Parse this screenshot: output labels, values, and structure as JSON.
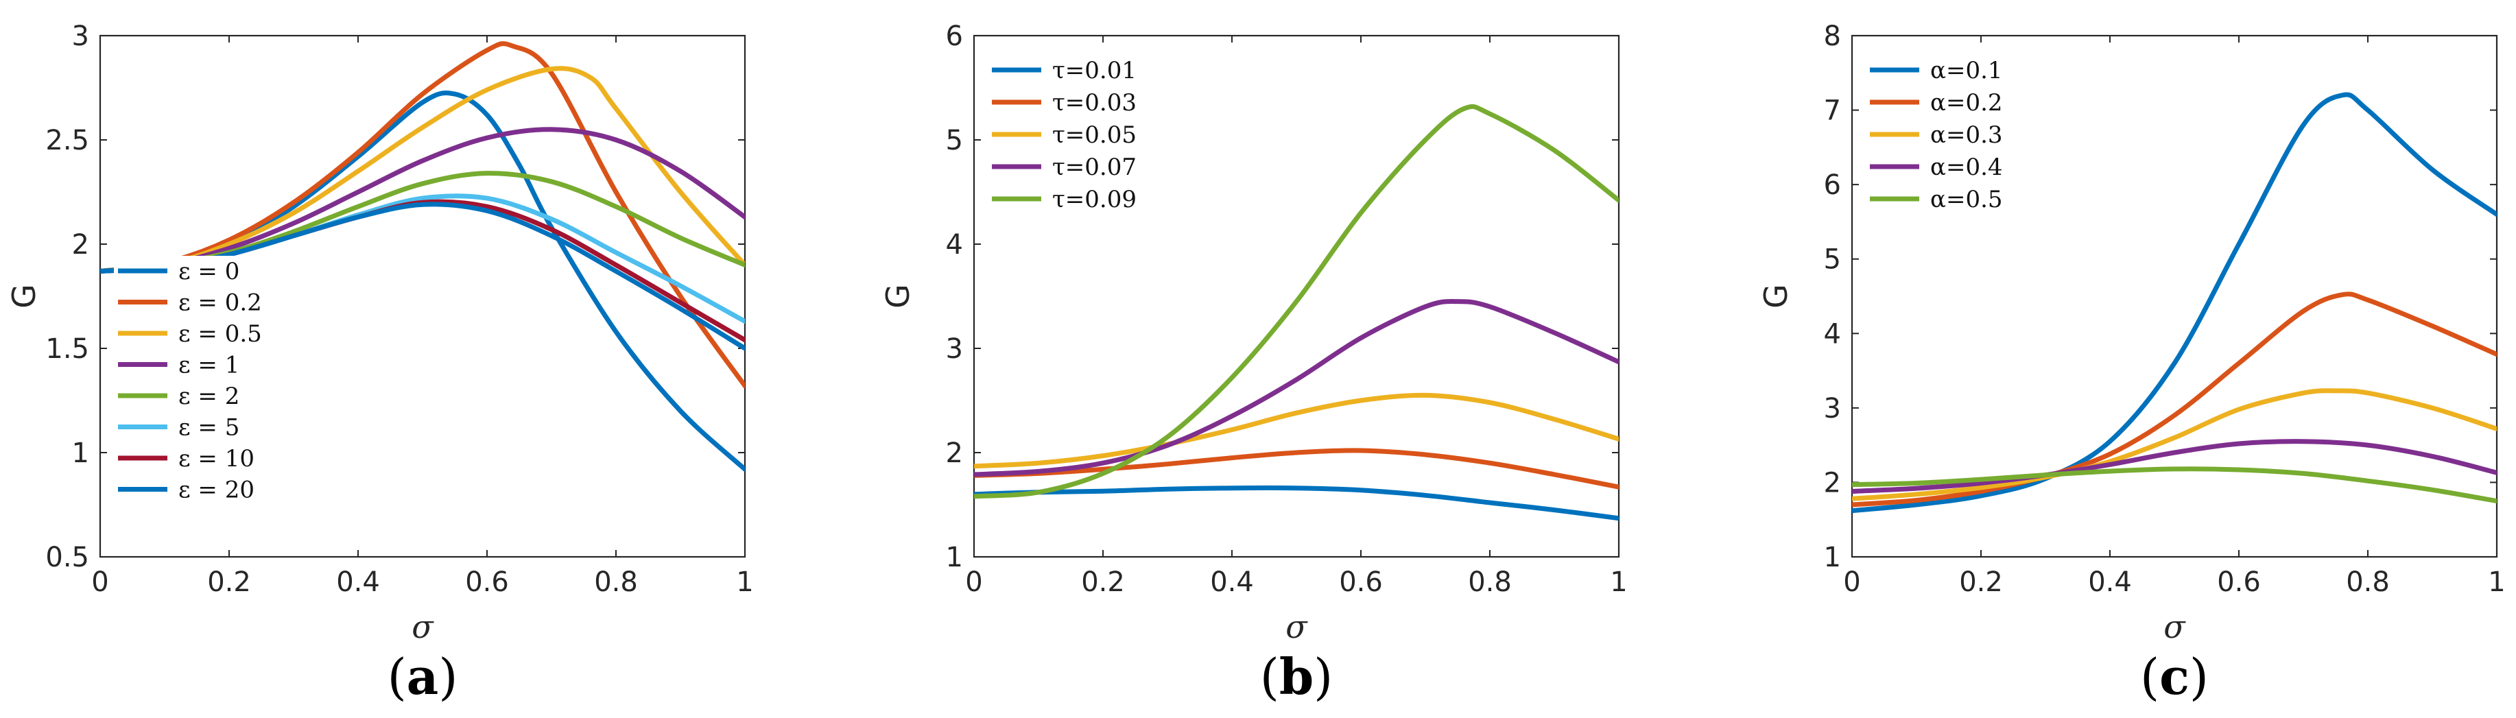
{
  "chart_data": [
    {
      "type": "line",
      "caption": "(a)",
      "caption_letter": "a",
      "xlabel": "σ",
      "ylabel": "G",
      "xlim": [
        0,
        1
      ],
      "ylim": [
        0.5,
        3
      ],
      "xticks": [
        0,
        0.2,
        0.4,
        0.6,
        0.8,
        1
      ],
      "xtick_labels": [
        "0",
        "0.2",
        "0.4",
        "0.6",
        "0.8",
        "1"
      ],
      "yticks": [
        0.5,
        1,
        1.5,
        2,
        2.5,
        3
      ],
      "ytick_labels": [
        "0.5",
        "1",
        "1.5",
        "2",
        "2.5",
        "3"
      ],
      "legend_position": "bottom-left",
      "legend_draw_order": "forward",
      "series": [
        {
          "name": "ε = 0",
          "color": "#0072BD",
          "x": [
            0,
            0.1,
            0.2,
            0.3,
            0.4,
            0.5,
            0.55,
            0.6,
            0.65,
            0.7,
            0.8,
            0.9,
            1.0
          ],
          "y": [
            1.87,
            1.9,
            2.0,
            2.18,
            2.42,
            2.68,
            2.72,
            2.62,
            2.38,
            2.08,
            1.58,
            1.2,
            0.92
          ]
        },
        {
          "name": "ε = 0.2",
          "color": "#D95319",
          "x": [
            0,
            0.1,
            0.2,
            0.3,
            0.4,
            0.5,
            0.6,
            0.64,
            0.7,
            0.8,
            0.9,
            1.0
          ],
          "y": [
            1.87,
            1.91,
            2.02,
            2.2,
            2.44,
            2.72,
            2.93,
            2.95,
            2.82,
            2.25,
            1.75,
            1.32
          ]
        },
        {
          "name": "ε = 0.5",
          "color": "#EDB120",
          "x": [
            0,
            0.1,
            0.2,
            0.3,
            0.4,
            0.5,
            0.6,
            0.7,
            0.76,
            0.8,
            0.9,
            1.0
          ],
          "y": [
            1.87,
            1.9,
            2.0,
            2.15,
            2.35,
            2.56,
            2.74,
            2.84,
            2.8,
            2.65,
            2.25,
            1.9
          ]
        },
        {
          "name": "ε = 1",
          "color": "#7E2F8E",
          "x": [
            0,
            0.1,
            0.2,
            0.3,
            0.4,
            0.5,
            0.6,
            0.7,
            0.8,
            0.9,
            1.0
          ],
          "y": [
            1.87,
            1.9,
            1.98,
            2.1,
            2.25,
            2.4,
            2.51,
            2.55,
            2.5,
            2.35,
            2.13
          ]
        },
        {
          "name": "ε = 2",
          "color": "#77AC30",
          "x": [
            0,
            0.1,
            0.2,
            0.3,
            0.4,
            0.5,
            0.6,
            0.7,
            0.8,
            0.9,
            1.0
          ],
          "y": [
            1.87,
            1.9,
            1.96,
            2.06,
            2.18,
            2.29,
            2.34,
            2.3,
            2.18,
            2.03,
            1.9
          ]
        },
        {
          "name": "ε = 5",
          "color": "#4DBEEE",
          "x": [
            0,
            0.1,
            0.2,
            0.3,
            0.4,
            0.5,
            0.6,
            0.7,
            0.8,
            0.9,
            1.0
          ],
          "y": [
            1.87,
            1.89,
            1.95,
            2.04,
            2.14,
            2.22,
            2.22,
            2.12,
            1.96,
            1.8,
            1.63
          ]
        },
        {
          "name": "ε = 10",
          "color": "#A2142F",
          "x": [
            0,
            0.1,
            0.2,
            0.3,
            0.4,
            0.5,
            0.6,
            0.7,
            0.8,
            0.9,
            1.0
          ],
          "y": [
            1.87,
            1.89,
            1.95,
            2.04,
            2.13,
            2.2,
            2.18,
            2.07,
            1.9,
            1.72,
            1.54
          ]
        },
        {
          "name": "ε = 20",
          "color": "#0072BD",
          "x": [
            0,
            0.1,
            0.2,
            0.3,
            0.4,
            0.5,
            0.6,
            0.7,
            0.8,
            0.9,
            1.0
          ],
          "y": [
            1.87,
            1.89,
            1.95,
            2.04,
            2.13,
            2.19,
            2.16,
            2.04,
            1.87,
            1.69,
            1.5
          ]
        }
      ]
    },
    {
      "type": "line",
      "caption": "(b)",
      "caption_letter": "b",
      "xlabel": "σ",
      "ylabel": "G",
      "xlim": [
        0,
        1
      ],
      "ylim": [
        1,
        6
      ],
      "xticks": [
        0,
        0.2,
        0.4,
        0.6,
        0.8,
        1
      ],
      "xtick_labels": [
        "0",
        "0.2",
        "0.4",
        "0.6",
        "0.8",
        "1"
      ],
      "yticks": [
        1,
        2,
        3,
        4,
        5,
        6
      ],
      "ytick_labels": [
        "1",
        "2",
        "3",
        "4",
        "5",
        "6"
      ],
      "legend_position": "top-left",
      "legend_draw_order": "reverse",
      "series": [
        {
          "name": "τ=0.01",
          "color": "#0072BD",
          "x": [
            0,
            0.1,
            0.2,
            0.3,
            0.4,
            0.5,
            0.6,
            0.7,
            0.8,
            0.9,
            1.0
          ],
          "y": [
            1.6,
            1.62,
            1.63,
            1.65,
            1.66,
            1.66,
            1.64,
            1.59,
            1.52,
            1.45,
            1.37
          ]
        },
        {
          "name": "τ=0.03",
          "color": "#D95319",
          "x": [
            0,
            0.1,
            0.2,
            0.3,
            0.4,
            0.5,
            0.6,
            0.7,
            0.8,
            0.9,
            1.0
          ],
          "y": [
            1.78,
            1.8,
            1.84,
            1.89,
            1.95,
            2.0,
            2.02,
            1.98,
            1.9,
            1.79,
            1.67
          ]
        },
        {
          "name": "τ=0.05",
          "color": "#EDB120",
          "x": [
            0,
            0.1,
            0.2,
            0.3,
            0.4,
            0.5,
            0.6,
            0.7,
            0.8,
            0.9,
            1.0
          ],
          "y": [
            1.87,
            1.9,
            1.97,
            2.08,
            2.22,
            2.38,
            2.5,
            2.55,
            2.48,
            2.32,
            2.13
          ]
        },
        {
          "name": "τ=0.07",
          "color": "#7E2F8E",
          "x": [
            0,
            0.1,
            0.2,
            0.3,
            0.4,
            0.5,
            0.6,
            0.7,
            0.75,
            0.8,
            0.9,
            1.0
          ],
          "y": [
            1.79,
            1.82,
            1.9,
            2.07,
            2.35,
            2.7,
            3.1,
            3.4,
            3.45,
            3.4,
            3.15,
            2.87
          ]
        },
        {
          "name": "τ=0.09",
          "color": "#77AC30",
          "x": [
            0,
            0.1,
            0.2,
            0.3,
            0.4,
            0.5,
            0.6,
            0.7,
            0.76,
            0.8,
            0.9,
            1.0
          ],
          "y": [
            1.58,
            1.62,
            1.8,
            2.15,
            2.72,
            3.45,
            4.3,
            5.0,
            5.3,
            5.25,
            4.9,
            4.42
          ]
        }
      ]
    },
    {
      "type": "line",
      "caption": "(c)",
      "caption_letter": "c",
      "xlabel": "σ",
      "ylabel": "G",
      "xlim": [
        0,
        1
      ],
      "ylim": [
        1,
        8
      ],
      "xticks": [
        0,
        0.2,
        0.4,
        0.6,
        0.8,
        1
      ],
      "xtick_labels": [
        "0",
        "0.2",
        "0.4",
        "0.6",
        "0.8",
        "1"
      ],
      "yticks": [
        1,
        2,
        3,
        4,
        5,
        6,
        7,
        8
      ],
      "ytick_labels": [
        "1",
        "2",
        "3",
        "4",
        "5",
        "6",
        "7",
        "8"
      ],
      "legend_position": "top-left",
      "legend_draw_order": "reverse",
      "series": [
        {
          "name": "α=0.1",
          "color": "#0072BD",
          "x": [
            0,
            0.1,
            0.2,
            0.3,
            0.4,
            0.5,
            0.6,
            0.7,
            0.76,
            0.8,
            0.9,
            1.0
          ],
          "y": [
            1.62,
            1.7,
            1.82,
            2.05,
            2.55,
            3.6,
            5.2,
            6.8,
            7.2,
            7.0,
            6.2,
            5.6
          ]
        },
        {
          "name": "α=0.2",
          "color": "#D95319",
          "x": [
            0,
            0.1,
            0.2,
            0.3,
            0.4,
            0.5,
            0.6,
            0.7,
            0.76,
            0.8,
            0.9,
            1.0
          ],
          "y": [
            1.7,
            1.76,
            1.88,
            2.08,
            2.38,
            2.9,
            3.6,
            4.3,
            4.52,
            4.45,
            4.1,
            3.72
          ]
        },
        {
          "name": "α=0.3",
          "color": "#EDB120",
          "x": [
            0,
            0.1,
            0.2,
            0.3,
            0.4,
            0.5,
            0.6,
            0.7,
            0.75,
            0.8,
            0.9,
            1.0
          ],
          "y": [
            1.78,
            1.84,
            1.93,
            2.07,
            2.28,
            2.6,
            2.98,
            3.2,
            3.23,
            3.2,
            3.0,
            2.72
          ]
        },
        {
          "name": "α=0.4",
          "color": "#7E2F8E",
          "x": [
            0,
            0.1,
            0.2,
            0.3,
            0.4,
            0.5,
            0.6,
            0.7,
            0.8,
            0.9,
            1.0
          ],
          "y": [
            1.88,
            1.92,
            1.99,
            2.1,
            2.24,
            2.4,
            2.52,
            2.55,
            2.5,
            2.35,
            2.13
          ]
        },
        {
          "name": "α=0.5",
          "color": "#77AC30",
          "x": [
            0,
            0.1,
            0.2,
            0.3,
            0.4,
            0.5,
            0.6,
            0.7,
            0.8,
            0.9,
            1.0
          ],
          "y": [
            1.97,
            1.99,
            2.04,
            2.1,
            2.15,
            2.18,
            2.17,
            2.12,
            2.02,
            1.9,
            1.75
          ]
        }
      ]
    }
  ]
}
